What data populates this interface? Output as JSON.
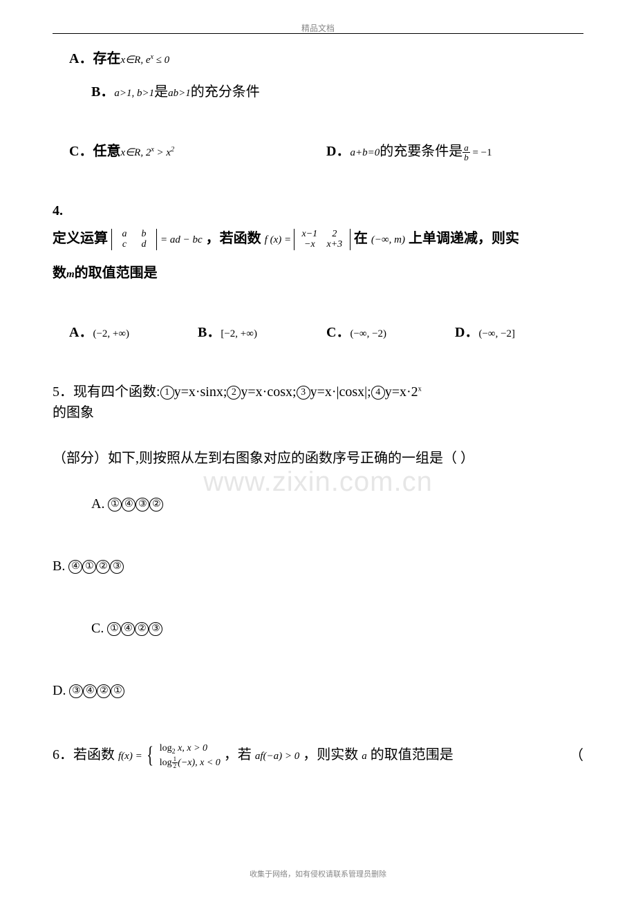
{
  "header": "精品文档",
  "footer": "收集于网络，如有侵权请联系管理员删除",
  "watermark": "www.zixin.com.cn",
  "q3": {
    "optA_prefix": "A．存在",
    "optA_math": "x∈R, e",
    "optA_sup": "x",
    "optA_tail": " ≤ 0",
    "optB_prefix": "B．",
    "optB_math": "a>1, b>1",
    "optB_mid": "是",
    "optB_math2": "ab>1",
    "optB_tail": "的充分条件",
    "optC_prefix": "C．任意",
    "optC_math": "x∈R, 2",
    "optC_sup": "x",
    "optC_mid": " > x",
    "optC_sup2": "2",
    "optD_prefix": "D．",
    "optD_math": "a+b=0",
    "optD_mid": "的充要条件是",
    "optD_frac_num": "a",
    "optD_frac_den": "b",
    "optD_tail": " = −1"
  },
  "q4": {
    "num": "4.",
    "prefix": "定义运算",
    "det1": {
      "a": "a",
      "b": "b",
      "c": "c",
      "d": "d"
    },
    "eq1": " = ad − bc",
    "mid1": "，若函数",
    "fx": "f (x) = ",
    "det2": {
      "a": "x−1",
      "b": "2",
      "c": "−x",
      "d": "x+3"
    },
    "mid2": "在",
    "interval": "(−∞, m)",
    "mid3": "上单调递减，则实",
    "line2_prefix": "数",
    "line2_m": "m",
    "line2_tail": "的取值范围是",
    "optA": "A．",
    "optA_val": "(−2, +∞)",
    "optB": "B．",
    "optB_val": "[−2, +∞)",
    "optC": "C．",
    "optC_val": "(−∞, −2)",
    "optD": "D．",
    "optD_val": "(−∞, −2]"
  },
  "q5": {
    "line1_prefix": "5．现有四个函数:",
    "f1_label": "y=x·sinx;",
    "f2_label": "y=x·cosx;",
    "f3_label": "y=x·|cosx|;",
    "f4_label": "y=x·2",
    "f4_sup": "x",
    "line2": "的图象",
    "line3": "（部分）如下,则按照从左到右图象对应的函数序号正确的一组是（  ）",
    "optA": "A.",
    "optB": "B.",
    "optC": "C.",
    "optD": "D.",
    "seqA": [
      "①",
      "④",
      "③",
      "②"
    ],
    "seqB": [
      "④",
      "①",
      "②",
      "③"
    ],
    "seqC": [
      "①",
      "④",
      "②",
      "③"
    ],
    "seqD": [
      "③",
      "④",
      "②",
      "①"
    ]
  },
  "q6": {
    "prefix": "6．若函数",
    "fx": "f(x) = ",
    "p1": "log",
    "p1_sub": "2",
    "p1_tail": " x, x > 0",
    "p2": "log",
    "p2_subfrac_num": "1",
    "p2_subfrac_den": "2",
    "p2_tail": "(−x), x < 0",
    "mid": "，若",
    "cond": "af(−a) > 0",
    "mid2": "，则实数",
    "a": "a",
    "tail": "的取值范围是",
    "paren": "（"
  },
  "circled": {
    "1": "1",
    "2": "2",
    "3": "3",
    "4": "4"
  },
  "colors": {
    "text": "#000000",
    "bg": "#ffffff",
    "muted": "#888888",
    "wm": "#e6e6e6"
  }
}
